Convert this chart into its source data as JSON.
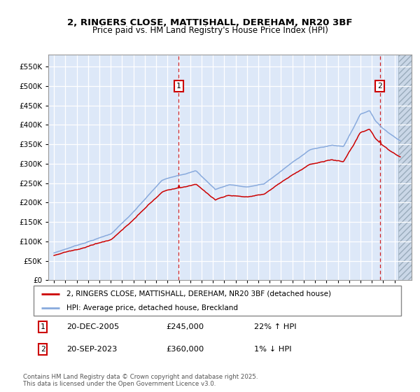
{
  "title_line1": "2, RINGERS CLOSE, MATTISHALL, DEREHAM, NR20 3BF",
  "title_line2": "Price paid vs. HM Land Registry's House Price Index (HPI)",
  "legend_label1": "2, RINGERS CLOSE, MATTISHALL, DEREHAM, NR20 3BF (detached house)",
  "legend_label2": "HPI: Average price, detached house, Breckland",
  "transaction1_date": "20-DEC-2005",
  "transaction1_price": "£245,000",
  "transaction1_hpi": "22% ↑ HPI",
  "transaction2_date": "20-SEP-2023",
  "transaction2_price": "£360,000",
  "transaction2_hpi": "1% ↓ HPI",
  "footer": "Contains HM Land Registry data © Crown copyright and database right 2025.\nThis data is licensed under the Open Government Licence v3.0.",
  "line1_color": "#cc0000",
  "line2_color": "#88aadd",
  "plot_bg": "#dde8f8",
  "vline_color": "#cc0000",
  "ylim_min": 0,
  "ylim_max": 580000,
  "transaction1_x": 2005.97,
  "transaction2_x": 2023.72,
  "xmin": 1994.5,
  "xmax": 2026.5,
  "hatch_start": 2025.3
}
